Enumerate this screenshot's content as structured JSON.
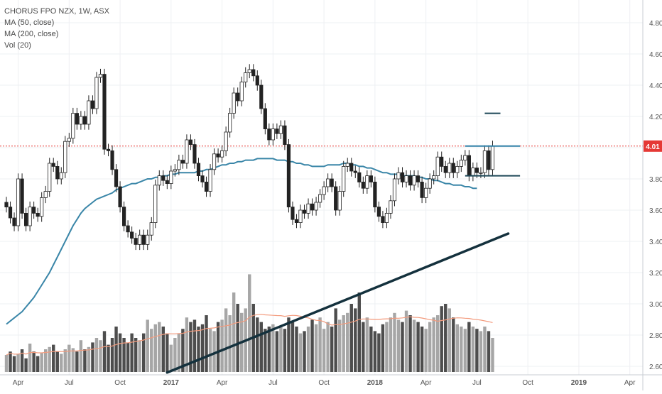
{
  "chart_data": {
    "type": "candlestick",
    "symbol_label": "CHORUS FPO NZX, 1W, ASX",
    "indicators": [
      "MA (50, close)",
      "MA (200, close)",
      "Vol (20)"
    ],
    "last_price_label": "4.01",
    "last_price": 4.01,
    "ylim": [
      2.56,
      4.9
    ],
    "y_ticks": [
      "2.60",
      "2.80",
      "3.00",
      "3.20",
      "3.40",
      "3.60",
      "3.80",
      "4.00",
      "4.20",
      "4.40",
      "4.60",
      "4.80"
    ],
    "y_tick_values": [
      2.6,
      2.8,
      3.0,
      3.2,
      3.4,
      3.6,
      3.8,
      4.0,
      4.2,
      4.4,
      4.6,
      4.8
    ],
    "x_ticks": [
      {
        "label": "Apr",
        "week": 3,
        "bold": false
      },
      {
        "label": "Jul",
        "week": 16,
        "bold": false
      },
      {
        "label": "Oct",
        "week": 29,
        "bold": false
      },
      {
        "label": "2017",
        "week": 42,
        "bold": true
      },
      {
        "label": "Apr",
        "week": 55,
        "bold": false
      },
      {
        "label": "Jul",
        "week": 68,
        "bold": false
      },
      {
        "label": "Oct",
        "week": 81,
        "bold": false
      },
      {
        "label": "2018",
        "week": 94,
        "bold": true
      },
      {
        "label": "Apr",
        "week": 107,
        "bold": false
      },
      {
        "label": "Jul",
        "week": 120,
        "bold": false
      },
      {
        "label": "Oct",
        "week": 133,
        "bold": false
      },
      {
        "label": "2019",
        "week": 146,
        "bold": true
      },
      {
        "label": "Apr",
        "week": 159,
        "bold": false
      }
    ],
    "closes": [
      3.62,
      3.55,
      3.5,
      3.8,
      3.58,
      3.5,
      3.62,
      3.58,
      3.56,
      3.68,
      3.72,
      3.9,
      3.88,
      3.8,
      3.84,
      4.04,
      4.06,
      4.22,
      4.15,
      4.2,
      4.15,
      4.3,
      4.25,
      4.45,
      4.47,
      3.99,
      3.98,
      3.86,
      3.75,
      3.62,
      3.5,
      3.46,
      3.42,
      3.38,
      3.44,
      3.38,
      3.44,
      3.52,
      3.76,
      3.82,
      3.79,
      3.77,
      3.85,
      3.86,
      3.92,
      3.9,
      4.05,
      4.02,
      3.9,
      3.82,
      3.78,
      3.72,
      3.86,
      3.96,
      3.94,
      3.98,
      4.1,
      4.22,
      4.35,
      4.3,
      4.42,
      4.48,
      4.5,
      4.46,
      4.4,
      4.25,
      4.12,
      4.05,
      4.12,
      4.09,
      4.14,
      4.02,
      3.62,
      3.54,
      3.52,
      3.6,
      3.58,
      3.64,
      3.6,
      3.65,
      3.7,
      3.75,
      3.8,
      3.75,
      3.6,
      3.72,
      3.88,
      3.9,
      3.85,
      3.84,
      3.78,
      3.74,
      3.82,
      3.78,
      3.62,
      3.56,
      3.52,
      3.58,
      3.66,
      3.8,
      3.84,
      3.78,
      3.82,
      3.76,
      3.82,
      3.78,
      3.68,
      3.74,
      3.8,
      3.82,
      3.94,
      3.88,
      3.84,
      3.9,
      3.84,
      3.88,
      3.92,
      3.95,
      3.82,
      3.87,
      3.84,
      3.84,
      3.98,
      3.86,
      4.01
    ],
    "ma50": [
      2.87,
      2.89,
      2.91,
      2.93,
      2.95,
      2.98,
      3.01,
      3.04,
      3.08,
      3.12,
      3.16,
      3.2,
      3.25,
      3.3,
      3.35,
      3.4,
      3.45,
      3.5,
      3.54,
      3.58,
      3.61,
      3.63,
      3.65,
      3.67,
      3.68,
      3.69,
      3.7,
      3.71,
      3.73,
      3.74,
      3.75,
      3.76,
      3.77,
      3.77,
      3.78,
      3.79,
      3.8,
      3.8,
      3.81,
      3.81,
      3.82,
      3.82,
      3.83,
      3.83,
      3.84,
      3.84,
      3.84,
      3.84,
      3.84,
      3.85,
      3.85,
      3.86,
      3.86,
      3.87,
      3.88,
      3.89,
      3.89,
      3.9,
      3.9,
      3.91,
      3.91,
      3.92,
      3.92,
      3.92,
      3.93,
      3.93,
      3.93,
      3.93,
      3.93,
      3.92,
      3.92,
      3.92,
      3.91,
      3.91,
      3.9,
      3.9,
      3.89,
      3.89,
      3.88,
      3.88,
      3.88,
      3.88,
      3.89,
      3.89,
      3.89,
      3.89,
      3.9,
      3.9,
      3.89,
      3.89,
      3.88,
      3.88,
      3.87,
      3.87,
      3.86,
      3.85,
      3.84,
      3.84,
      3.83,
      3.83,
      3.83,
      3.82,
      3.82,
      3.82,
      3.82,
      3.81,
      3.81,
      3.8,
      3.8,
      3.79,
      3.79,
      3.78,
      3.77,
      3.77,
      3.76,
      3.76,
      3.76,
      3.75,
      3.75,
      3.74,
      3.74
    ],
    "ma200_segment": {
      "start_week": 41,
      "start_value": 2.56,
      "end_week": 128,
      "end_value": 3.45
    },
    "pattern_lines": [
      {
        "from_week": 117,
        "to_week": 131,
        "value": 4.01,
        "color": "#2f7fa6"
      },
      {
        "from_week": 117,
        "to_week": 131,
        "value": 3.82,
        "color": "#1d4757"
      },
      {
        "from_week": 122,
        "to_week": 126,
        "value": 4.22,
        "color": "#1d4757"
      }
    ],
    "volumes": [
      15,
      18,
      14,
      16,
      20,
      12,
      25,
      18,
      14,
      17,
      20,
      22,
      24,
      18,
      16,
      20,
      24,
      21,
      18,
      28,
      20,
      22,
      26,
      30,
      28,
      36,
      24,
      30,
      40,
      34,
      30,
      26,
      34,
      30,
      28,
      34,
      46,
      38,
      42,
      44,
      40,
      34,
      24,
      30,
      34,
      38,
      48,
      44,
      46,
      40,
      42,
      50,
      38,
      36,
      44,
      46,
      56,
      50,
      70,
      60,
      52,
      56,
      86,
      60,
      48,
      44,
      38,
      40,
      42,
      36,
      40,
      38,
      48,
      44,
      40,
      34,
      36,
      40,
      46,
      42,
      48,
      38,
      44,
      40,
      56,
      46,
      50,
      52,
      60,
      56,
      70,
      44,
      48,
      40,
      36,
      34,
      42,
      44,
      48,
      52,
      46,
      44,
      54,
      50,
      46,
      44,
      40,
      38,
      44,
      48,
      50,
      58,
      60,
      56,
      48,
      42,
      40,
      38,
      44,
      40,
      38,
      36,
      40,
      36,
      30
    ]
  }
}
